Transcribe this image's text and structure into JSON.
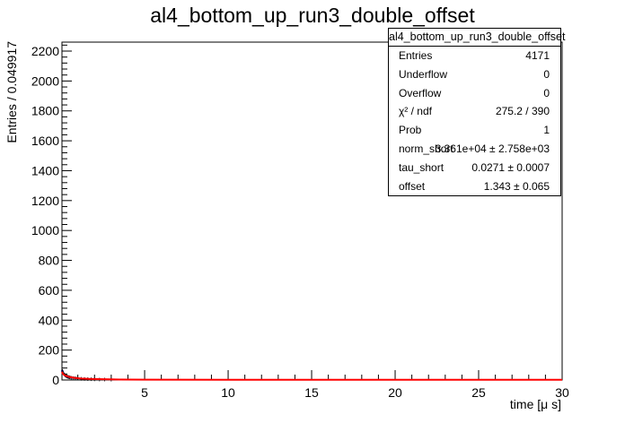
{
  "title": "al4_bottom_up_run3_double_offset",
  "stats": {
    "title": "al4_bottom_up_run3_double_offset",
    "rows": [
      {
        "label": "Entries",
        "value": "4171"
      },
      {
        "label": "Underflow",
        "value": "0"
      },
      {
        "label": "Overflow",
        "value": "0"
      },
      {
        "label": "χ² / ndf",
        "value": "275.2 / 390"
      },
      {
        "label": "Prob",
        "value": "1"
      },
      {
        "label": "norm_short",
        "value": "3.361e+04  ± 2.758e+03"
      },
      {
        "label": "tau_short",
        "value": "0.0271 ± 0.0007"
      },
      {
        "label": "offset",
        "value": "1.343  ± 0.065"
      }
    ]
  },
  "colors": {
    "fit": "#ff0000",
    "hist": "#000080",
    "axis": "#000000"
  },
  "chart_data": {
    "type": "line",
    "xlabel": "time [μ s]",
    "ylabel": "Entries / 0.049917",
    "xlim": [
      0.05,
      30
    ],
    "ylim": [
      0,
      2260
    ],
    "xticks": [
      5,
      10,
      15,
      20,
      25,
      30
    ],
    "yticks": [
      0,
      200,
      400,
      600,
      800,
      1000,
      1200,
      1400,
      1600,
      1800,
      2000,
      2200
    ],
    "grid": false,
    "legend": "top-right",
    "series": [
      {
        "kind": "histogram",
        "x": [
          0.08,
          0.13,
          0.18,
          0.23,
          0.28,
          0.33,
          0.38,
          0.43,
          0.48,
          0.53,
          0.6,
          0.7,
          0.8,
          0.9,
          1.0,
          1.2,
          1.4,
          1.6,
          1.8,
          2.0,
          2.3,
          2.6,
          3.0
        ],
        "y": [
          60,
          45,
          38,
          32,
          28,
          24,
          22,
          20,
          18,
          17,
          15,
          13,
          12,
          11,
          10,
          8,
          7,
          6,
          5,
          4,
          3,
          3,
          2
        ]
      },
      {
        "kind": "fit",
        "model": "double_offset",
        "norm_short": 33610,
        "tau_short": 0.0271,
        "offset": 1.343,
        "x": [
          0.05,
          0.1,
          0.2,
          0.3,
          0.5,
          0.8,
          1.2,
          1.8,
          2.5,
          3.5,
          5,
          10,
          15,
          20,
          25,
          30
        ],
        "y": [
          55,
          42,
          33,
          27,
          20,
          14,
          10,
          7,
          5,
          3,
          2,
          1.4,
          1.35,
          1.34,
          1.34,
          1.34
        ]
      }
    ]
  }
}
